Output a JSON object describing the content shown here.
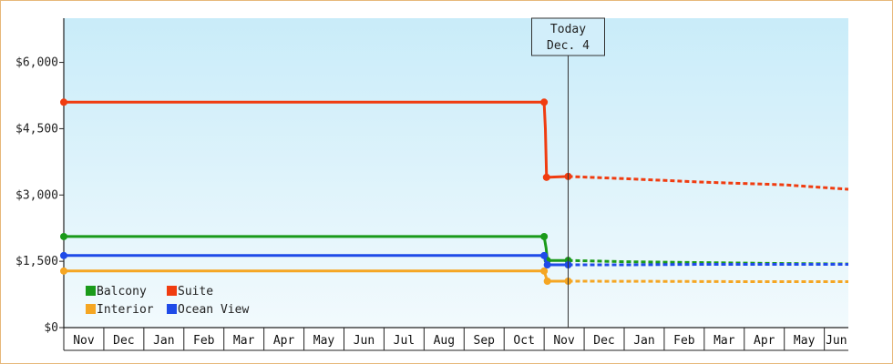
{
  "chart_data": {
    "type": "line",
    "title": "",
    "xlabel": "",
    "ylabel": "",
    "ylim": [
      0,
      7000
    ],
    "yticks": [
      0,
      1500,
      3000,
      4500,
      6000
    ],
    "ytick_labels": [
      "$0",
      "$1,500",
      "$3,000",
      "$4,500",
      "$6,000"
    ],
    "x_months": [
      "Nov",
      "Dec",
      "Jan",
      "Feb",
      "Mar",
      "Apr",
      "May",
      "Jun",
      "Jul",
      "Aug",
      "Sep",
      "Oct",
      "Nov",
      "Dec",
      "Jan",
      "Feb",
      "Mar",
      "Apr",
      "May",
      "Jun"
    ],
    "marker": {
      "line1": "Today",
      "line2": "Dec. 4",
      "x": 12.6
    },
    "legend_position": "bottom-left",
    "grid": false,
    "series": [
      {
        "name": "Balcony",
        "color": "#1a9a1a",
        "solid": [
          [
            0,
            2060
          ],
          [
            12.0,
            2060
          ],
          [
            12.05,
            1800
          ],
          [
            12.08,
            1520
          ],
          [
            12.6,
            1520
          ]
        ],
        "markers": [
          [
            0,
            2060
          ],
          [
            12.0,
            2060
          ],
          [
            12.08,
            1520
          ],
          [
            12.6,
            1520
          ]
        ],
        "forecast": [
          [
            12.6,
            1520
          ],
          [
            14,
            1490
          ],
          [
            16,
            1470
          ],
          [
            18,
            1450
          ],
          [
            19.6,
            1440
          ]
        ]
      },
      {
        "name": "Suite",
        "color": "#f03c10",
        "solid": [
          [
            0,
            5100
          ],
          [
            12.0,
            5100
          ],
          [
            12.03,
            4500
          ],
          [
            12.06,
            3400
          ],
          [
            12.6,
            3420
          ]
        ],
        "markers": [
          [
            0,
            5100
          ],
          [
            12.0,
            5100
          ],
          [
            12.06,
            3400
          ],
          [
            12.6,
            3420
          ]
        ],
        "forecast": [
          [
            12.6,
            3420
          ],
          [
            14,
            3370
          ],
          [
            16,
            3290
          ],
          [
            18,
            3230
          ],
          [
            19.6,
            3130
          ]
        ]
      },
      {
        "name": "Interior",
        "color": "#f5a623",
        "solid": [
          [
            0,
            1280
          ],
          [
            12.0,
            1280
          ],
          [
            12.08,
            1050
          ],
          [
            12.6,
            1050
          ]
        ],
        "markers": [
          [
            0,
            1280
          ],
          [
            12.0,
            1280
          ],
          [
            12.08,
            1050
          ],
          [
            12.6,
            1050
          ]
        ],
        "forecast": [
          [
            12.6,
            1050
          ],
          [
            15,
            1045
          ],
          [
            17,
            1040
          ],
          [
            19.6,
            1040
          ]
        ]
      },
      {
        "name": "Ocean View",
        "color": "#1f4be8",
        "solid": [
          [
            0,
            1630
          ],
          [
            12.0,
            1630
          ],
          [
            12.04,
            1500
          ],
          [
            12.08,
            1420
          ],
          [
            12.6,
            1420
          ]
        ],
        "markers": [
          [
            0,
            1630
          ],
          [
            12.0,
            1630
          ],
          [
            12.08,
            1420
          ],
          [
            12.6,
            1420
          ]
        ],
        "forecast": [
          [
            12.6,
            1420
          ],
          [
            14,
            1420
          ],
          [
            16,
            1430
          ],
          [
            18,
            1430
          ],
          [
            19.6,
            1430
          ]
        ]
      }
    ]
  }
}
